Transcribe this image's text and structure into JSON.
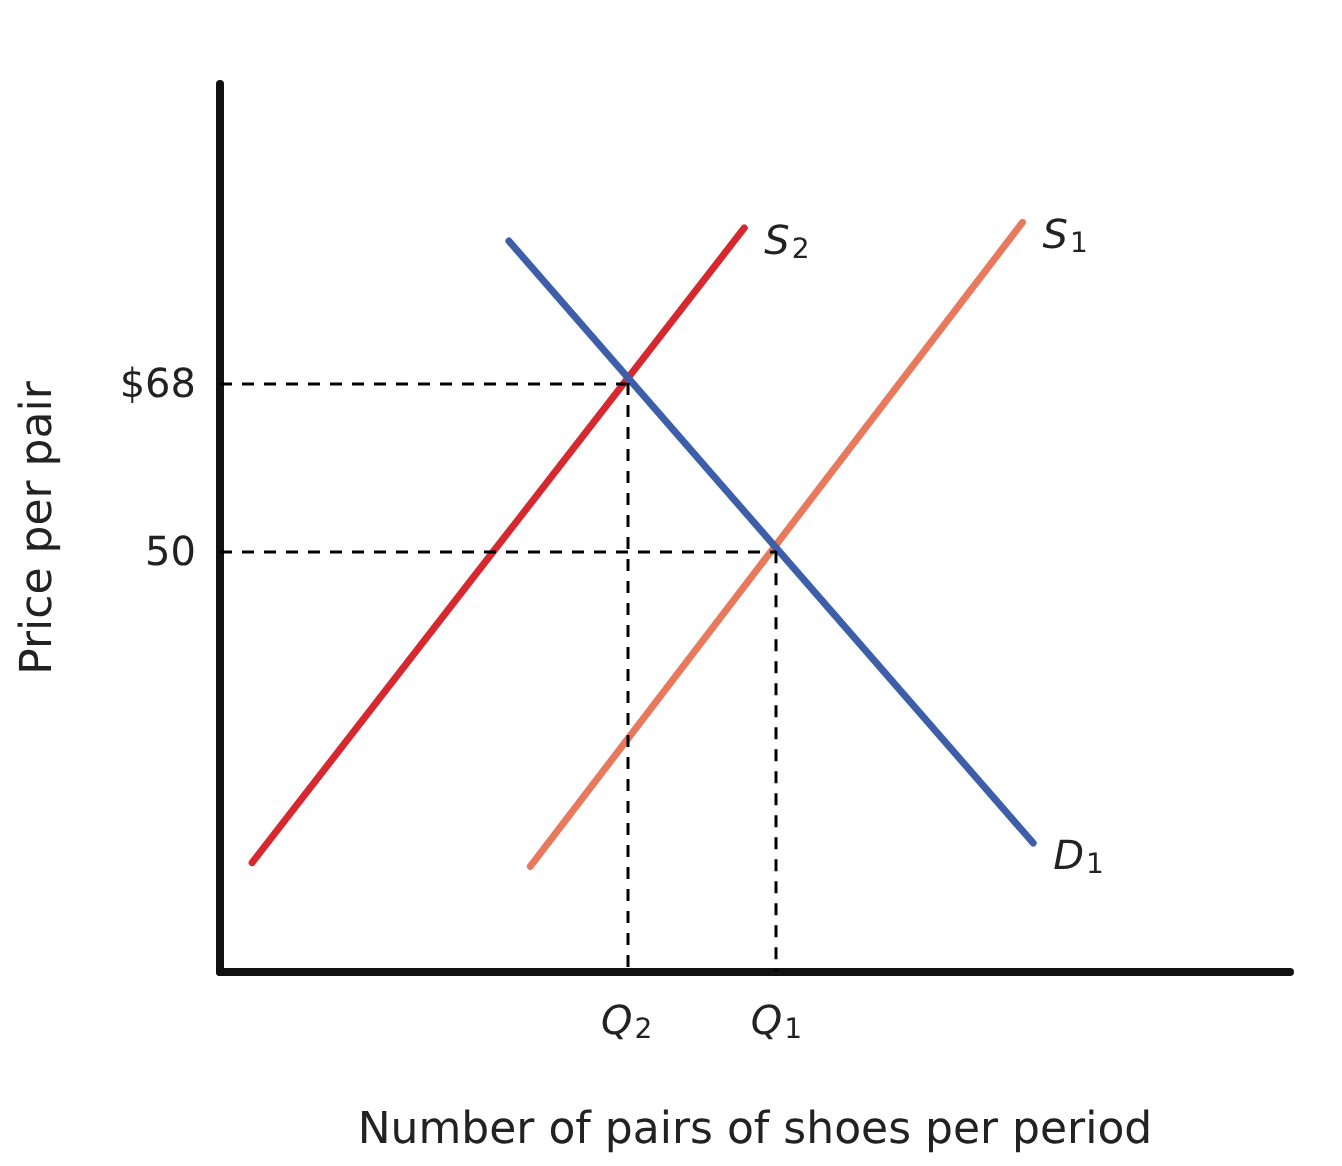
{
  "chart_data": {
    "type": "line",
    "xlabel": "Number of pairs of shoes per period",
    "ylabel": "Price per pair",
    "ylim": [
      5,
      100
    ],
    "yticks": [
      50,
      {
        "value": 68,
        "label": "$68"
      }
    ],
    "categories": [
      null,
      null,
      null,
      null,
      null,
      null,
      null,
      null,
      null,
      null,
      null,
      null,
      null,
      null,
      null,
      null,
      null,
      null,
      null,
      null,
      null,
      null,
      null,
      null,
      null,
      null,
      null,
      null,
      null,
      null,
      null,
      null,
      null,
      null,
      null,
      null,
      null,
      null,
      "Q$_{2}$",
      null,
      null,
      null,
      null,
      null,
      null,
      null,
      null,
      null,
      null,
      null,
      null,
      null,
      "Q$_{1}$",
      null,
      null,
      null,
      null,
      null,
      null,
      null,
      null,
      null,
      null,
      null,
      null,
      null,
      null,
      null,
      null,
      null,
      null,
      null,
      null,
      null,
      null,
      null,
      null,
      null,
      null,
      null,
      null,
      null,
      null,
      null,
      null,
      null,
      null,
      null,
      null,
      null,
      null,
      null,
      null,
      null,
      null,
      null,
      null,
      null,
      null,
      null,
      null
    ],
    "series": [
      {
        "name": "S$_{2}$",
        "color": "#d7282f",
        "values": [
          null,
          null,
          null,
          16.7,
          null,
          null,
          null,
          null,
          null,
          null,
          null,
          null,
          null,
          null,
          null,
          null,
          null,
          null,
          null,
          null,
          null,
          null,
          null,
          null,
          null,
          null,
          null,
          null,
          null,
          null,
          null,
          null,
          null,
          null,
          null,
          null,
          null,
          null,
          null,
          null,
          null,
          null,
          null,
          null,
          null,
          null,
          null,
          null,
          null,
          84.6,
          null,
          null,
          null,
          null,
          null,
          null,
          null,
          null,
          null,
          null,
          null,
          null,
          null,
          null,
          null,
          null,
          null,
          null,
          null,
          null,
          null,
          null,
          null,
          null,
          null,
          null,
          null,
          null,
          null,
          null,
          null,
          null,
          null,
          null,
          null,
          null,
          null,
          null,
          null,
          null,
          null,
          null,
          null,
          null,
          null,
          null,
          null,
          null,
          null,
          null,
          null
        ]
      },
      {
        "name": "S$_{1}$",
        "color": "#e8795c",
        "values": [
          null,
          null,
          null,
          null,
          null,
          null,
          null,
          null,
          null,
          null,
          null,
          null,
          null,
          null,
          null,
          null,
          null,
          null,
          null,
          null,
          null,
          null,
          null,
          null,
          null,
          null,
          null,
          null,
          null,
          16.3,
          null,
          null,
          null,
          null,
          null,
          null,
          null,
          null,
          null,
          null,
          null,
          null,
          null,
          null,
          null,
          null,
          null,
          null,
          null,
          null,
          null,
          null,
          null,
          null,
          null,
          null,
          null,
          null,
          null,
          null,
          null,
          null,
          null,
          null,
          null,
          null,
          null,
          null,
          null,
          null,
          null,
          null,
          null,
          null,
          null,
          85.2,
          null,
          null,
          null,
          null,
          null,
          null,
          null,
          null,
          null,
          null,
          null,
          null,
          null,
          null,
          null,
          null,
          null,
          null,
          null,
          null,
          null,
          null,
          null,
          null,
          null
        ]
      },
      {
        "name": "D$_{1}$",
        "color": "#3d5ea8",
        "values": [
          null,
          null,
          null,
          null,
          null,
          null,
          null,
          null,
          null,
          null,
          null,
          null,
          null,
          null,
          null,
          null,
          null,
          null,
          null,
          null,
          null,
          null,
          null,
          null,
          null,
          null,
          null,
          83.2,
          null,
          null,
          null,
          null,
          null,
          null,
          null,
          null,
          null,
          null,
          null,
          null,
          null,
          null,
          null,
          null,
          null,
          null,
          null,
          null,
          null,
          null,
          null,
          null,
          null,
          null,
          null,
          null,
          null,
          null,
          null,
          null,
          null,
          null,
          null,
          null,
          null,
          null,
          null,
          null,
          null,
          null,
          null,
          null,
          null,
          null,
          null,
          null,
          18.8,
          null,
          null,
          null,
          null,
          null,
          null,
          null,
          null,
          null,
          null,
          null,
          null,
          null,
          null,
          null,
          null,
          null,
          null,
          null,
          null,
          null,
          null,
          null,
          null
        ]
      }
    ],
    "ref_lines": [
      {
        "axis": "y",
        "value": 68,
        "color": "#000000",
        "line_style": "dashed"
      },
      {
        "axis": "x",
        "value": "Q$_{2}$",
        "color": "#000000",
        "line_style": "dashed"
      },
      {
        "axis": "y",
        "value": 50,
        "color": "#000000",
        "line_style": "dashed"
      },
      {
        "axis": "x",
        "value": "Q$_{1}$",
        "color": "#000000",
        "line_style": "dashed"
      }
    ],
    "grid": false,
    "legend": false,
    "marker": "none",
    "line_style": "solid"
  }
}
